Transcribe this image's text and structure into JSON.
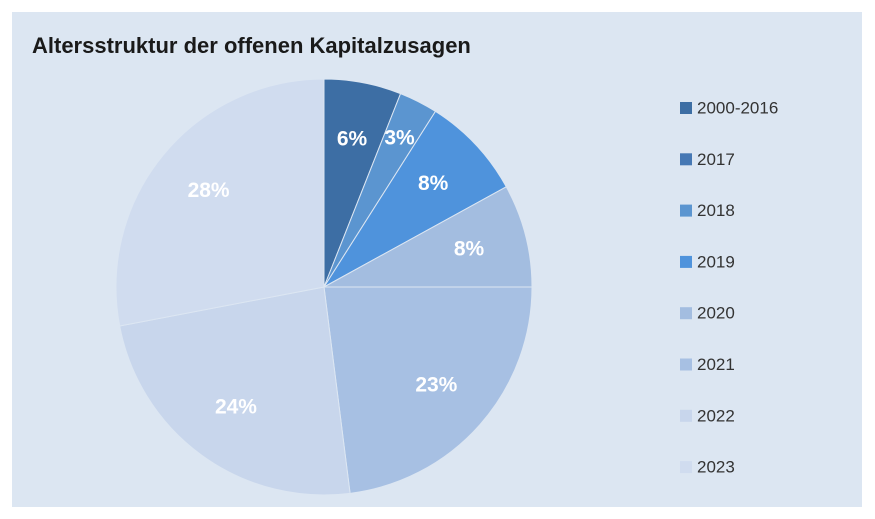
{
  "chart_data": {
    "type": "pie",
    "title": "Altersstruktur der offenen Kapitalzusagen",
    "categories": [
      "2000-2016",
      "2017",
      "2018",
      "2019",
      "2020",
      "2021",
      "2022",
      "2023"
    ],
    "values": [
      6,
      0,
      3,
      8,
      8,
      23,
      24,
      28
    ],
    "value_labels": [
      "6%",
      null,
      "3%",
      "8%",
      "8%",
      "23%",
      "24%",
      "28%"
    ],
    "colors": [
      "#3d6ea4",
      "#4678b4",
      "#5b95d0",
      "#4f93dc",
      "#a3bde0",
      "#a7c0e3",
      "#c8d6ec",
      "#d0dcef"
    ],
    "legend": "right"
  }
}
